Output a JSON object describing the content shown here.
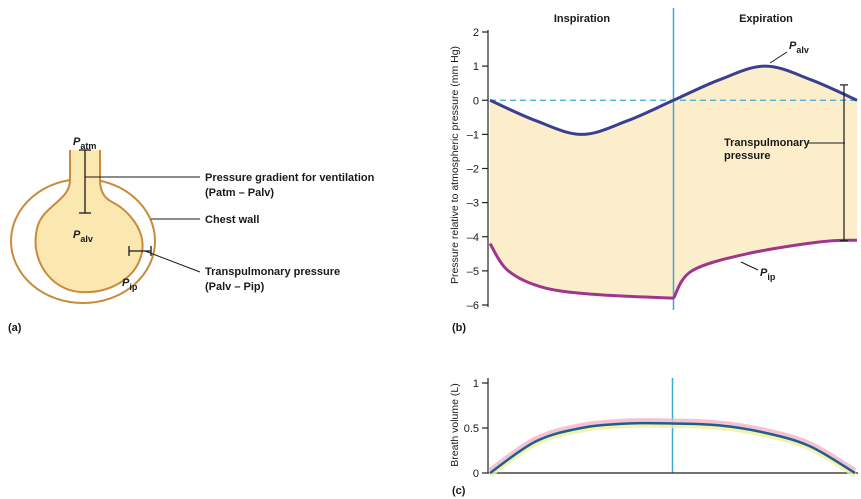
{
  "panel_a": {
    "label": "(a)",
    "p_atm": "Patm",
    "p_alv": "Palv",
    "p_ip": "Pip",
    "gradient_label_1": "Pressure gradient for ventilation",
    "gradient_label_2": "(Patm – Palv)",
    "chest_wall_label": "Chest wall",
    "transpulmonary_label_1": "Transpulmonary pressure",
    "transpulmonary_label_2": "(Palv – Pip)"
  },
  "chart_data": [
    {
      "type": "line",
      "panel_label": "(b)",
      "phase_labels": [
        "Inspiration",
        "Expiration"
      ],
      "ylabel": "Pressure relative to atmospheric pressure (mm Hg)",
      "ylim": [
        -6,
        2
      ],
      "yticks": [
        "2",
        "1",
        "0",
        "–1",
        "–2",
        "–3",
        "–4",
        "–5",
        "–6"
      ],
      "reference_line_y": 0,
      "series": [
        {
          "name": "Palv",
          "x": [
            0,
            0.125,
            0.25,
            0.375,
            0.5,
            0.625,
            0.75,
            0.875,
            1.0
          ],
          "values": [
            0,
            -0.6,
            -1.0,
            -0.6,
            0,
            0.6,
            1.0,
            0.6,
            0
          ],
          "color": "#3a3f8f"
        },
        {
          "name": "Pip",
          "x": [
            0,
            0.05,
            0.15,
            0.3,
            0.5,
            0.55,
            0.7,
            0.9,
            1.0
          ],
          "values": [
            -4.2,
            -5.0,
            -5.5,
            -5.7,
            -5.8,
            -5.0,
            -4.5,
            -4.15,
            -4.1
          ],
          "color": "#a0358f"
        }
      ],
      "annotation": [
        "Transpulmonary",
        "pressure"
      ],
      "fill_color": "#fdeecb"
    },
    {
      "type": "line",
      "panel_label": "(c)",
      "ylabel": "Breath volume (L)",
      "ylim": [
        0,
        1
      ],
      "yticks": [
        "1",
        "0.5",
        "0"
      ],
      "series": [
        {
          "x": [
            0,
            0.125,
            0.25,
            0.375,
            0.5,
            0.625,
            0.75,
            0.875,
            1.0
          ],
          "values": [
            0,
            0.35,
            0.5,
            0.55,
            0.55,
            0.53,
            0.45,
            0.3,
            0
          ],
          "color": "#1f5f8f"
        }
      ]
    }
  ],
  "colors": {
    "lung_fill": "#fbe7b0",
    "lung_stroke": "#c98a3a",
    "divider": "#39a9d8",
    "axis": "#222222"
  }
}
